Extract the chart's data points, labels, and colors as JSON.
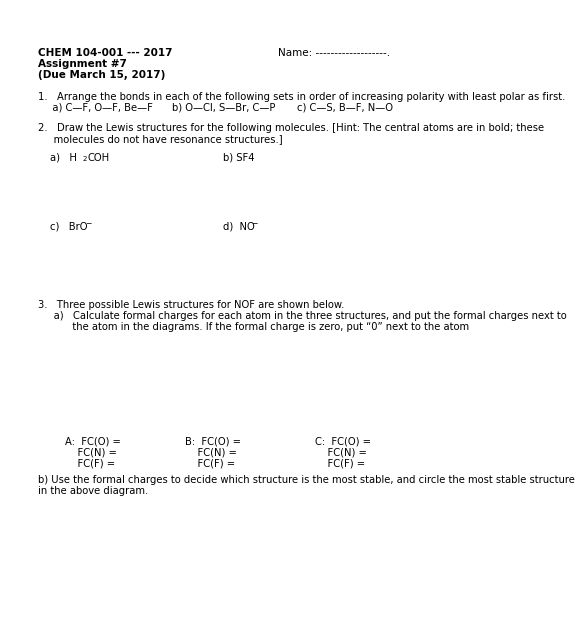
{
  "bg_color": "#ffffff",
  "header_left_1": "CHEM 104-001 --- 2017",
  "header_left_2": "Assignment #7",
  "header_left_3": "(Due March 15, 2017)",
  "header_right": "Name: -------------------.",
  "q1_line1": "1.   Arrange the bonds in each of the following sets in order of increasing polarity with least polar as first.",
  "q1_a": "   a) C—F, O—F, Be—F",
  "q1_b": "b) O—Cl, S—Br, C—P",
  "q1_c": "c) C—S, B—F, N—O",
  "q2_line1": "2.   Draw the Lewis structures for the following molecules. [Hint: The central atoms are in bold; these",
  "q2_line2": "     molecules do not have resonance structures.]",
  "q2_a_pre": "a)   H",
  "q2_a_sub": "2",
  "q2_a_post": "COH",
  "q2_b": "b) SF4",
  "q2_c_pre": "c)   BrO",
  "q2_c_sup": "−",
  "q2_d_pre": "d)  NO",
  "q2_d_sup": "−",
  "q3_line1": "3.   Three possible Lewis structures for NOF are shown below.",
  "q3_a_line1": "     a)   Calculate formal charges for each atom in the three structures, and put the formal charges next to",
  "q3_a_line2": "           the atom in the diagrams. If the formal charge is zero, put “0” next to the atom",
  "q3_A_1": "A:  FC(O) =",
  "q3_A_2": "    FC(N) =",
  "q3_A_3": "    FC(F) =",
  "q3_B_1": "B:  FC(O) =",
  "q3_B_2": "    FC(N) =",
  "q3_B_3": "    FC(F) =",
  "q3_C_1": "C:  FC(O) =",
  "q3_C_2": "    FC(N) =",
  "q3_C_3": "    FC(F) =",
  "q3_b_line1": "b) Use the formal charges to decide which structure is the most stable, and circle the most stable structure",
  "q3_b_line2": "in the above diagram."
}
